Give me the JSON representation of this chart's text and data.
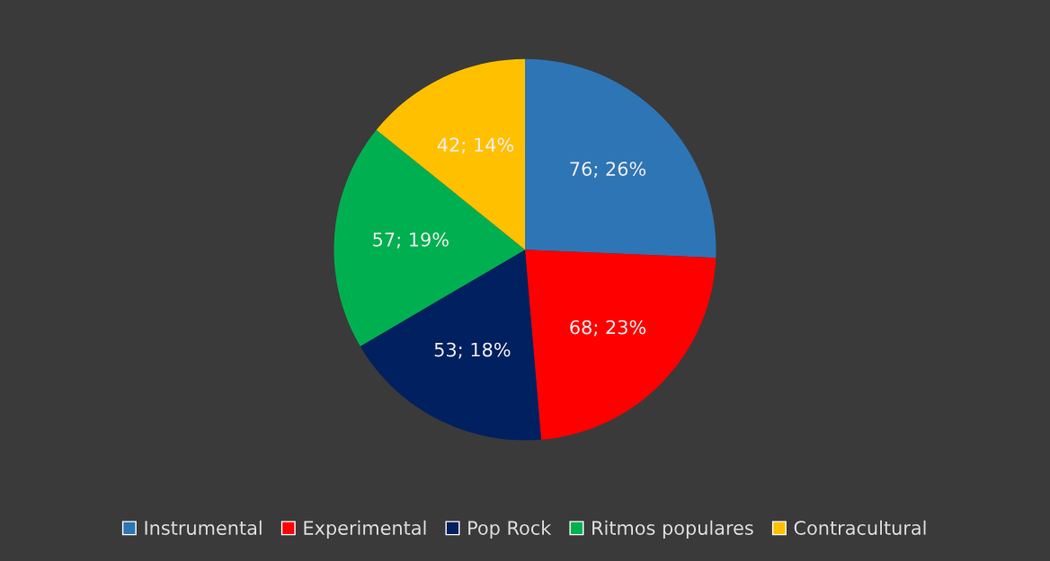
{
  "chart_data": {
    "type": "pie",
    "categories": [
      "Instrumental",
      "Experimental",
      "Pop Rock",
      "Ritmos populares",
      "Contracultural"
    ],
    "values": [
      76,
      68,
      53,
      57,
      42
    ],
    "value_labels": [
      "76; 26%",
      "68; 23%",
      "53; 18%",
      "57; 19%",
      "42; 14%"
    ],
    "colors": [
      "#2e75b6",
      "#ff0000",
      "#002060",
      "#00b050",
      "#ffc000"
    ],
    "legend": "bottom"
  }
}
